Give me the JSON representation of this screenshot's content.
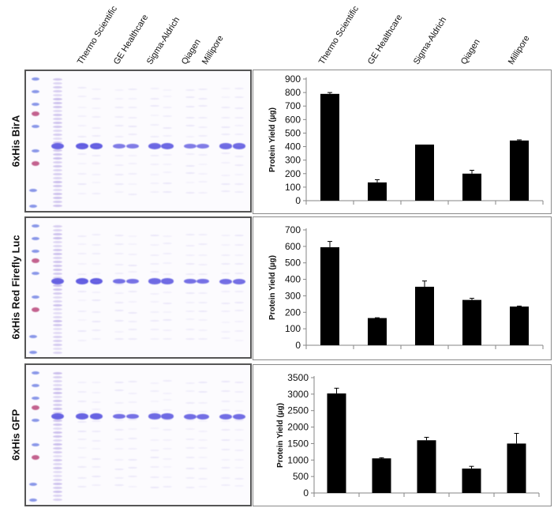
{
  "vendors": [
    "Thermo Scientific",
    "GE Healthcare",
    "Sigma-Aldrich",
    "Qiagen",
    "Millipore"
  ],
  "rows": [
    {
      "label": "6xHis BirA"
    },
    {
      "label": "6xHis Red Firefly Luc"
    },
    {
      "label": "6xHis GFP"
    }
  ],
  "chart_data": [
    {
      "type": "bar",
      "title": "6xHis BirA",
      "categories": [
        "Thermo Scientific",
        "GE Healthcare",
        "Sigma-Aldrich",
        "Qiagen",
        "Millipore"
      ],
      "values": [
        790,
        135,
        415,
        200,
        445
      ],
      "errors": [
        10,
        20,
        0,
        25,
        5
      ],
      "ylabel": "Protein Yield (µg)",
      "ylim": [
        0,
        900
      ],
      "yticks": [
        0,
        100,
        200,
        300,
        400,
        500,
        600,
        700,
        800,
        900
      ],
      "grid": false
    },
    {
      "type": "bar",
      "title": "6xHis Red Firefly Luc",
      "categories": [
        "Thermo Scientific",
        "GE Healthcare",
        "Sigma-Aldrich",
        "Qiagen",
        "Millipore"
      ],
      "values": [
        595,
        165,
        355,
        275,
        235
      ],
      "errors": [
        35,
        2,
        35,
        10,
        3
      ],
      "ylabel": "Protein Yield (µg)",
      "ylim": [
        0,
        700
      ],
      "yticks": [
        0,
        100,
        200,
        300,
        400,
        500,
        600,
        700
      ],
      "grid": false
    },
    {
      "type": "bar",
      "title": "6xHis GFP",
      "categories": [
        "Thermo Scientific",
        "GE Healthcare",
        "Sigma-Aldrich",
        "Qiagen",
        "Millipore"
      ],
      "values": [
        3020,
        1050,
        1600,
        740,
        1500
      ],
      "errors": [
        160,
        20,
        90,
        70,
        310
      ],
      "ylabel": "Protein Yield (µg)",
      "ylim": [
        0,
        3500
      ],
      "yticks": [
        0,
        500,
        1000,
        1500,
        2000,
        2500,
        3000,
        3500
      ],
      "grid": false
    }
  ],
  "colors": {
    "bar": "#000000",
    "gel_bg": "#fcfbfe",
    "band": "#5a55e0",
    "ladder_red": "#b0306a"
  }
}
